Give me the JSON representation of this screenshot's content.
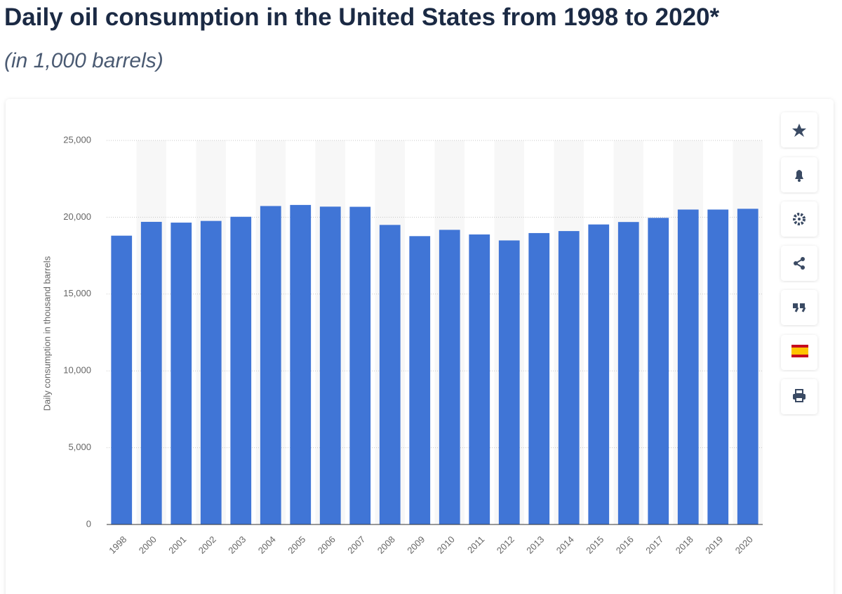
{
  "chart_data": {
    "type": "bar",
    "title": "Daily oil consumption in the United States from 1998 to 2020*",
    "subtitle": "(in 1,000 barrels)",
    "y_label": "Daily consumption in thousand barrels",
    "categories": [
      "1998",
      "2000",
      "2001",
      "2002",
      "2003",
      "2004",
      "2005",
      "2006",
      "2007",
      "2008",
      "2009",
      "2010",
      "2011",
      "2012",
      "2013",
      "2014",
      "2015",
      "2016",
      "2017",
      "2018",
      "2019",
      "2020"
    ],
    "values": [
      18800,
      19700,
      19650,
      19760,
      20030,
      20730,
      20800,
      20690,
      20680,
      19500,
      18770,
      19180,
      18880,
      18490,
      18970,
      19100,
      19530,
      19690,
      19960,
      20500,
      20500,
      20550
    ],
    "color": "#4075d6",
    "ylim": [
      0,
      25000
    ],
    "yticks": [
      0,
      {
        "value": 5000,
        "label": "5,000"
      },
      {
        "value": 10000,
        "label": "10,000"
      },
      {
        "value": 15000,
        "label": "15,000"
      },
      {
        "value": 20000,
        "label": "20,000"
      },
      {
        "value": 25000,
        "label": "25,000"
      }
    ],
    "grid": true
  }
}
